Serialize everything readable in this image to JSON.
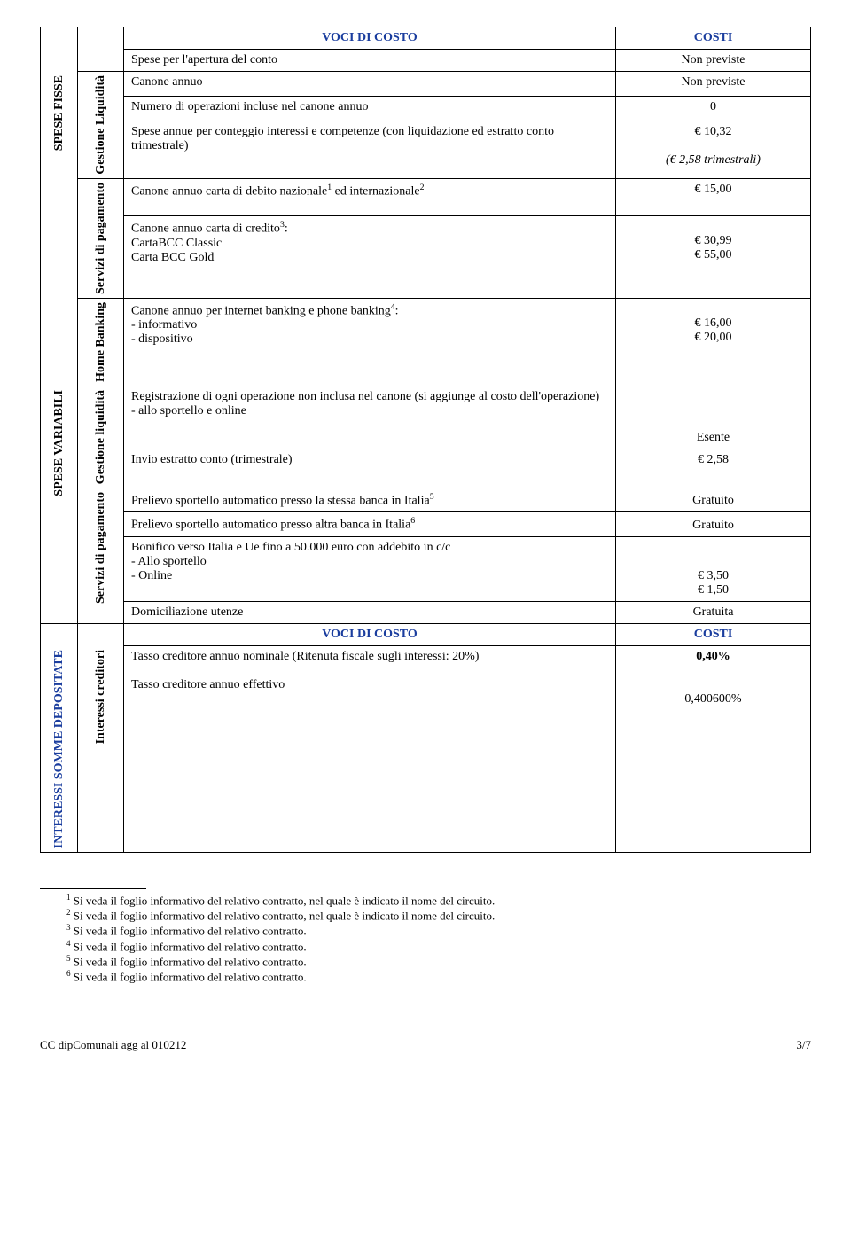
{
  "headers": {
    "voci": "VOCI DI COSTO",
    "costi": "COSTI"
  },
  "section_labels": {
    "spese_fisse": "SPESE FISSE",
    "spese_variabili": "SPESE VARIABILI",
    "interessi": "INTERESSI SOMME DEPOSITATE",
    "gest_liq_u": "Gestione Liquidità",
    "gest_liq_l": "Gestione liquidità",
    "serv_pag": "Servizi di pagamento",
    "home_bank": "Home Banking",
    "int_cred": "Interessi creditori"
  },
  "rows": {
    "apertura": {
      "d": "Spese per l'apertura del conto",
      "v": "Non previste"
    },
    "canone_annuo": {
      "d": "Canone annuo",
      "v": "Non previste"
    },
    "num_op": {
      "d": "Numero di operazioni incluse nel canone annuo",
      "v": "0"
    },
    "spese_annue": {
      "d": "Spese annue per conteggio interessi e competenze (con liquidazione ed estratto conto trimestrale)",
      "v1": "€ 10,32",
      "v2": "(€ 2,58 trimestrali)"
    },
    "can_debito": {
      "d": "Canone annuo carta di debito nazionale",
      "d2": " ed internazionale",
      "v": "€ 15,00"
    },
    "can_credito": {
      "d": "Canone annuo carta di credito",
      "d2": ":",
      "l1": "CartaBCC Classic",
      "l2": "Carta BCC Gold",
      "v1": "€  30,99",
      "v2": "€  55,00"
    },
    "can_internet": {
      "d": "Canone annuo per internet banking e phone banking",
      "d2": ":",
      "l1": "- informativo",
      "l2": "- dispositivo",
      "v1": "€ 16,00",
      "v2": "€ 20,00"
    },
    "registrazione": {
      "d": "Registrazione di ogni operazione non inclusa nel canone (si aggiunge al costo dell'operazione)",
      "l1": "- allo sportello e online",
      "v": "Esente"
    },
    "invio": {
      "d": "Invio estratto conto (trimestrale)",
      "v": "€ 2,58"
    },
    "prelievo1": {
      "d": "Prelievo sportello automatico presso la stessa banca in Italia",
      "v": "Gratuito"
    },
    "prelievo2": {
      "d": "Prelievo sportello automatico presso altra banca in Italia",
      "v": "Gratuito"
    },
    "bonifico": {
      "d": "Bonifico verso Italia e Ue fino a 50.000 euro con addebito in c/c",
      "l1": "- Allo sportello",
      "l2": "- Online",
      "v1": "€  3,50",
      "v2": "€  1,50"
    },
    "domicil": {
      "d": "Domiciliazione utenze",
      "v": "Gratuita"
    },
    "tasso_nom": {
      "d": "Tasso creditore annuo nominale (Ritenuta fiscale sugli interessi: 20%)",
      "v": "0,40%"
    },
    "tasso_eff": {
      "d": "Tasso creditore annuo effettivo",
      "v": "0,400600%"
    }
  },
  "superscripts": {
    "s1": "1",
    "s2": "2",
    "s3": "3",
    "s4": "4",
    "s5": "5",
    "s6": "6"
  },
  "footnotes": {
    "f1": "Si veda il foglio informativo del relativo contratto, nel quale è indicato il nome del circuito.",
    "f2": "Si veda il foglio informativo del relativo contratto, nel quale è indicato il nome del circuito.",
    "f3": "Si veda il foglio informativo del relativo contratto.",
    "f4": "Si veda il foglio informativo del relativo contratto.",
    "f5": "Si veda il foglio informativo del relativo contratto.",
    "f6": "Si veda il foglio informativo del relativo contratto."
  },
  "footer": {
    "left": "CC dipComunali agg al 010212",
    "right": "3/7"
  },
  "colors": {
    "header": "#1a3d9e",
    "text": "#000000",
    "bg": "#ffffff",
    "border": "#000000"
  }
}
